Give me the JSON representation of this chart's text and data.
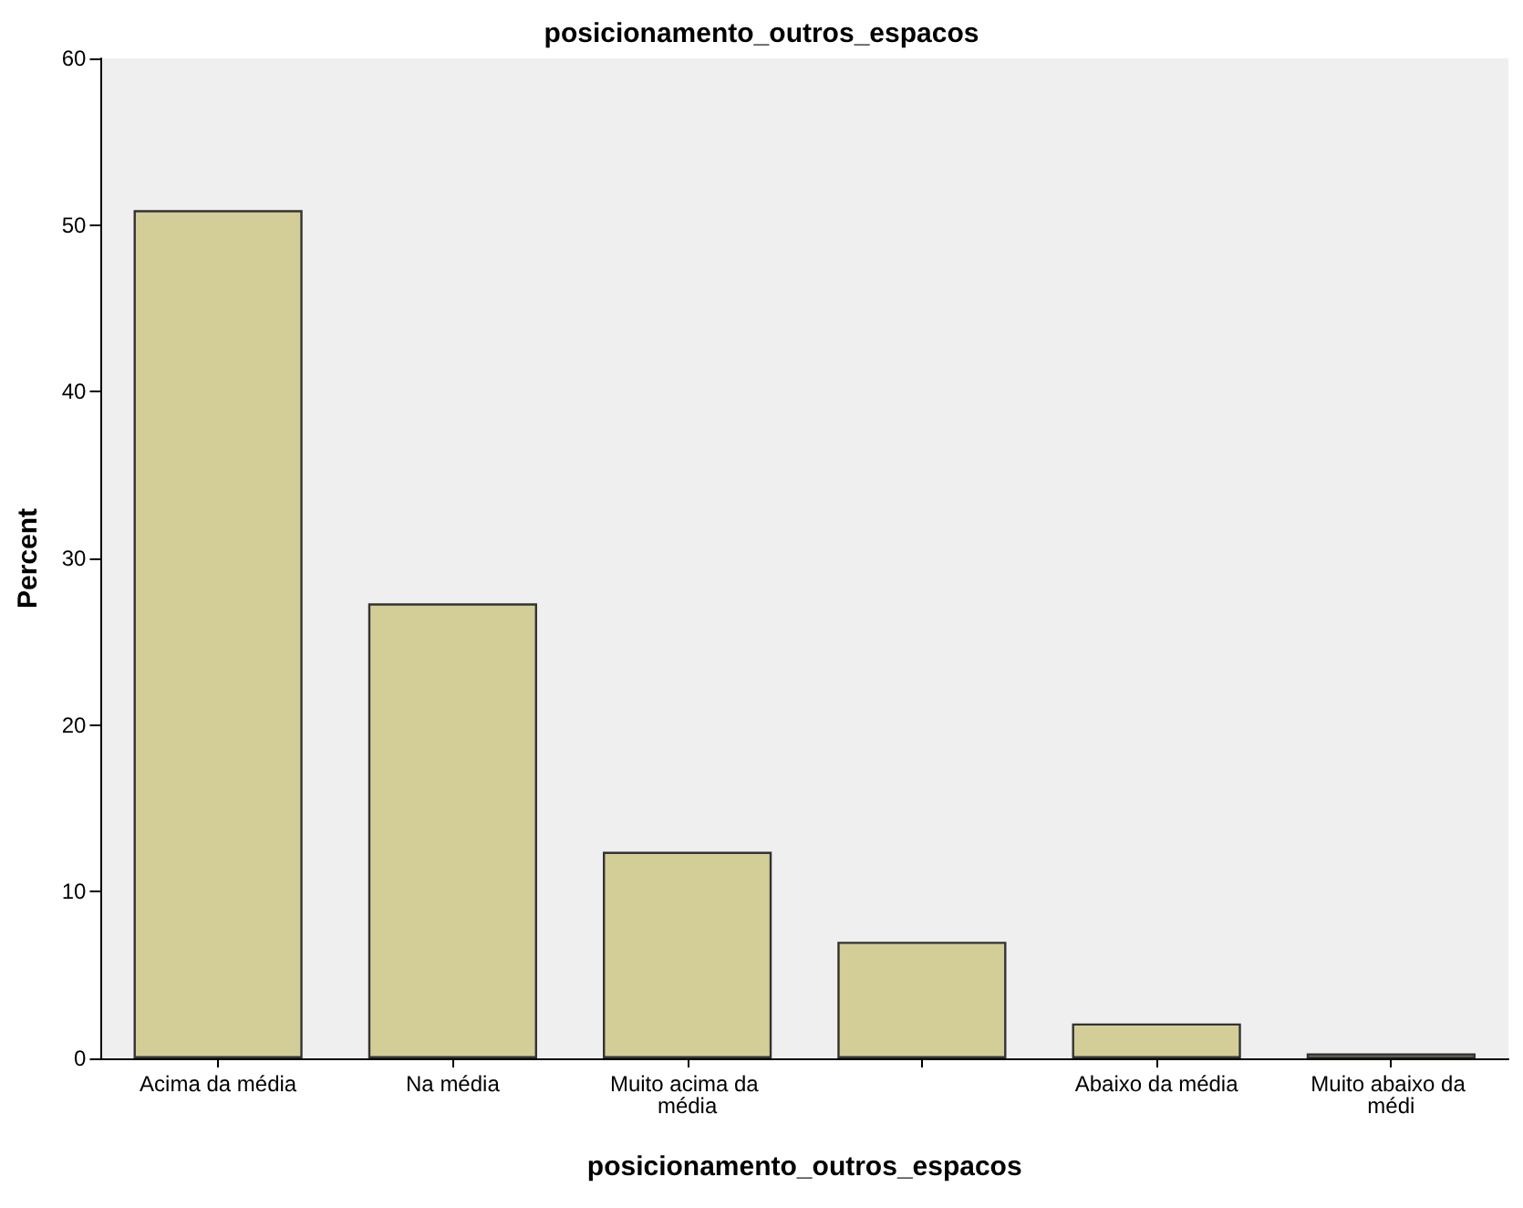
{
  "chart_data": {
    "type": "bar",
    "title": "posicionamento_outros_espacos",
    "xlabel": "posicionamento_outros_espacos",
    "ylabel": "Percent",
    "categories": [
      "Acima da média",
      "Na média",
      "Muito acima da média",
      null,
      "Abaixo da média",
      "Muito abaixo da médi"
    ],
    "values": [
      50.9,
      27.3,
      12.4,
      7.0,
      2.1,
      0.3
    ],
    "color": "#d3ce97",
    "ylim": [
      0,
      60
    ],
    "yticks": [
      0,
      10,
      20,
      30,
      40,
      50,
      60
    ],
    "grid": false
  }
}
